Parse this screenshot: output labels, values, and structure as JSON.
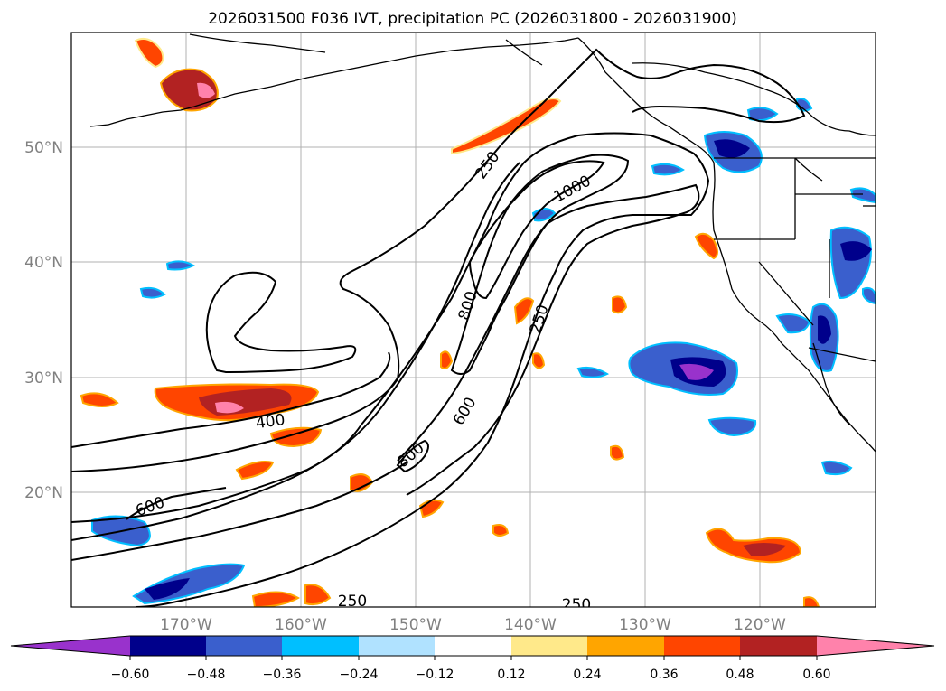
{
  "title": "2026031500 F036 IVT, precipitation PC (2026031800 - 2026031900)",
  "longitude_labels": [
    "170°W",
    "160°W",
    "150°W",
    "140°W",
    "130°W",
    "120°W"
  ],
  "latitude_labels": [
    "50°N",
    "40°N",
    "30°N",
    "20°N"
  ],
  "contour_labels": [
    "250",
    "1000",
    "800",
    "250",
    "600",
    "800",
    "400",
    "600",
    "250",
    "250"
  ],
  "colorbar": {
    "tick_labels": [
      "−0.60",
      "−0.48",
      "−0.36",
      "−0.24",
      "−0.12",
      "0.12",
      "0.24",
      "0.36",
      "0.48",
      "0.60"
    ],
    "colors": [
      "#9932cc",
      "#00008b",
      "#3a5fcd",
      "#00bfff",
      "#b0e2ff",
      "#ffffff",
      "#ffe98a",
      "#ffa500",
      "#ff4500",
      "#b22222",
      "#ff82ab"
    ]
  },
  "chart_data": {
    "type": "map",
    "title": "2026031500 F036 IVT, precipitation PC (2026031800 - 2026031900)",
    "lon_range": [
      -180,
      -110
    ],
    "lat_range": [
      10,
      60
    ],
    "contour_field": "IVT",
    "contour_levels": [
      250,
      400,
      600,
      800,
      1000
    ],
    "fill_field": "precipitation PC",
    "fill_levels": [
      -0.6,
      -0.48,
      -0.36,
      -0.24,
      -0.12,
      0.12,
      0.24,
      0.36,
      0.48,
      0.6
    ]
  }
}
